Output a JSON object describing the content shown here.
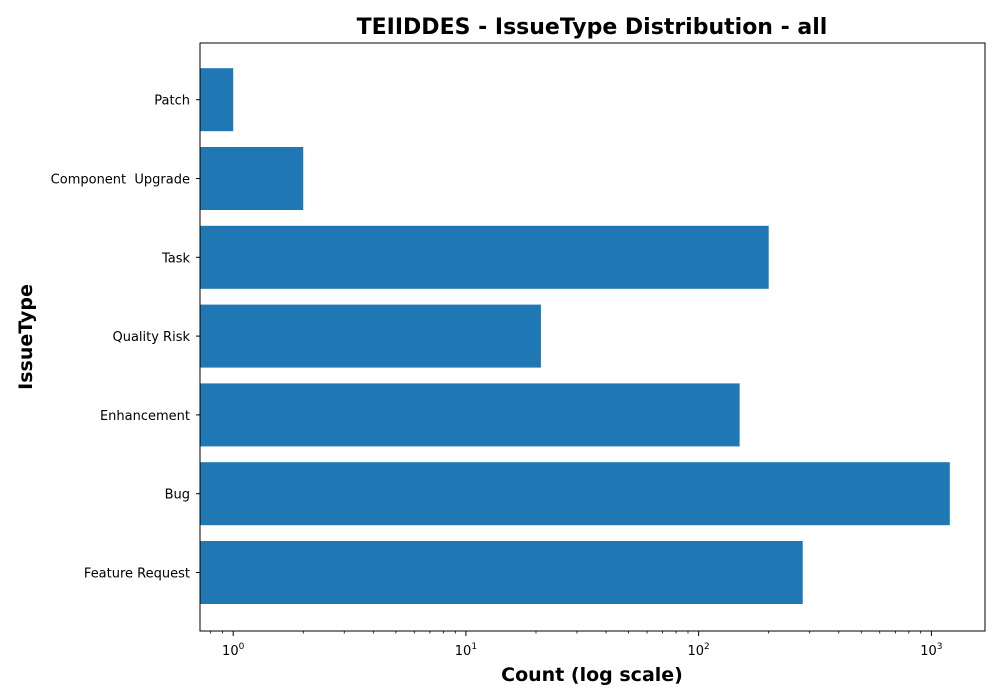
{
  "chart_data": {
    "type": "bar",
    "orientation": "horizontal",
    "title": "TEIIDDES - IssueType Distribution - all",
    "xlabel": "Count (log scale)",
    "ylabel": "IssueType",
    "x_scale": "log",
    "xlim": [
      0.72,
      1700
    ],
    "x_tick_labels": [
      {
        "value": 1,
        "base": "10",
        "exp": "0"
      },
      {
        "value": 10,
        "base": "10",
        "exp": "1"
      },
      {
        "value": 100,
        "base": "10",
        "exp": "2"
      },
      {
        "value": 1000,
        "base": "10",
        "exp": "3"
      }
    ],
    "categories": [
      "Feature Request",
      "Bug",
      "Enhancement",
      "Quality Risk",
      "Task",
      "Component  Upgrade",
      "Patch"
    ],
    "values": [
      280,
      1200,
      150,
      21,
      200,
      2,
      1
    ],
    "bar_color": "#1f77b4",
    "grid": false,
    "legend": "none"
  }
}
